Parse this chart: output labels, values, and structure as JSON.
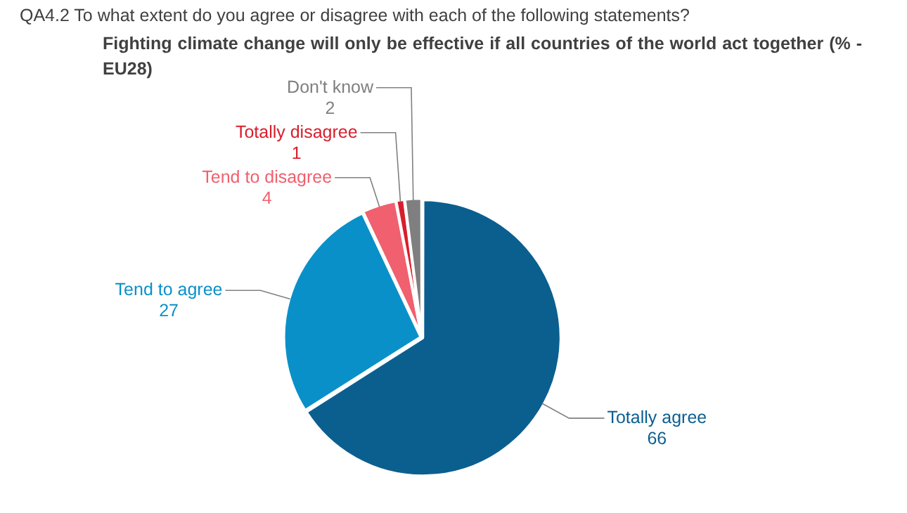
{
  "chart_data": {
    "type": "pie",
    "title": "QA4.2  To what extent do you agree or disagree with each of the following statements?",
    "subtitle": "Fighting climate change will only be effective if all countries of the world act together (% - EU28)",
    "categories": [
      "Totally agree",
      "Tend to agree",
      "Tend to disagree",
      "Totally disagree",
      "Don't know"
    ],
    "values": [
      66,
      27,
      4,
      1,
      2
    ],
    "colors": [
      "#0b5f8f",
      "#0a90c8",
      "#f0606e",
      "#d81e2c",
      "#7f7f7f"
    ],
    "data_labels": true,
    "legend": false
  }
}
